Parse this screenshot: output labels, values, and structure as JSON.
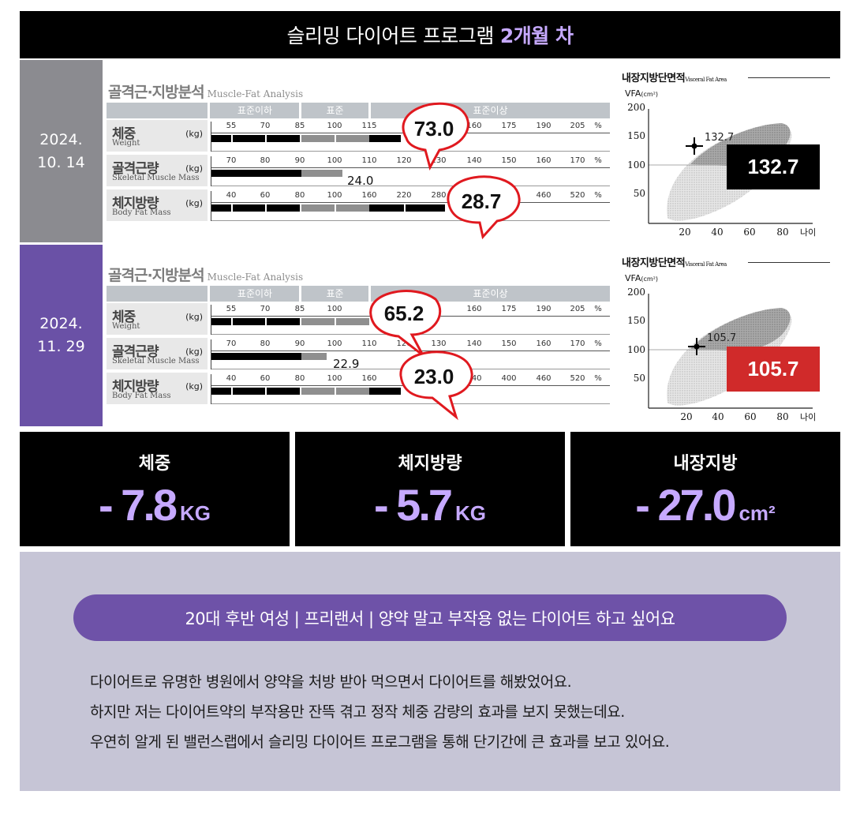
{
  "header": {
    "title": "슬리밍 다이어트 프로그램",
    "highlight": "2개월 차"
  },
  "sessions": [
    {
      "date_line1": "2024.",
      "date_line2": "10. 14",
      "mfa_title": "골격근·지방분석",
      "mfa_subtitle": "Muscle-Fat Analysis",
      "head_labels": [
        "표준이하",
        "표준",
        "표준이상"
      ],
      "rows": [
        {
          "ko": "체중",
          "en": "Weight",
          "unit": "(kg)",
          "ticks": [
            "55",
            "70",
            "85",
            "100",
            "115",
            "",
            "",
            "160",
            "175",
            "190",
            "205",
            "%"
          ]
        },
        {
          "ko": "골격근량",
          "en": "Skeletal Muscle Mass",
          "unit": "(kg)",
          "ticks": [
            "70",
            "80",
            "90",
            "100",
            "110",
            "120",
            "130",
            "140",
            "150",
            "160",
            "170",
            "%"
          ],
          "value": "24.0"
        },
        {
          "ko": "체지방량",
          "en": "Body Fat Mass",
          "unit": "(kg)",
          "ticks": [
            "40",
            "60",
            "80",
            "100",
            "160",
            "220",
            "280",
            "",
            "",
            "460",
            "520",
            "%"
          ]
        }
      ],
      "callouts": {
        "weight": "73.0",
        "fat": "28.7"
      },
      "vfa": {
        "title": "내장지방단면적",
        "title_en": "Visceral Fat Area",
        "axis_label": "VFA",
        "axis_unit": "(cm²)",
        "y_ticks": [
          "200",
          "150",
          "100",
          "50"
        ],
        "x_ticks": [
          "20",
          "40",
          "60",
          "80"
        ],
        "x_label": "나이",
        "point_label": "132.7",
        "box_value": "132.7",
        "box_color": "#000000"
      }
    },
    {
      "date_line1": "2024.",
      "date_line2": "11. 29",
      "mfa_title": "골격근·지방분석",
      "mfa_subtitle": "Muscle-Fat Analysis",
      "head_labels": [
        "표준이하",
        "표준",
        "표준이상"
      ],
      "rows": [
        {
          "ko": "체중",
          "en": "Weight",
          "unit": "(kg)",
          "ticks": [
            "55",
            "70",
            "85",
            "100",
            "",
            "",
            "",
            "160",
            "175",
            "190",
            "205",
            "%"
          ]
        },
        {
          "ko": "골격근량",
          "en": "Skeletal Muscle Mass",
          "unit": "(kg)",
          "ticks": [
            "70",
            "80",
            "90",
            "100",
            "110",
            "120",
            "130",
            "140",
            "150",
            "160",
            "170",
            "%"
          ],
          "value": "22.9"
        },
        {
          "ko": "체지방량",
          "en": "Body Fat Mass",
          "unit": "(kg)",
          "ticks": [
            "40",
            "60",
            "80",
            "100",
            "160",
            "",
            "",
            "340",
            "400",
            "460",
            "520",
            "%"
          ]
        }
      ],
      "callouts": {
        "weight": "65.2",
        "fat": "23.0"
      },
      "vfa": {
        "title": "내장지방단면적",
        "title_en": "Visceral Fat Area",
        "axis_label": "VFA",
        "axis_unit": "(cm²)",
        "y_ticks": [
          "200",
          "150",
          "100",
          "50"
        ],
        "x_ticks": [
          "20",
          "40",
          "60",
          "80"
        ],
        "x_label": "나이",
        "point_label": "105.7",
        "box_value": "105.7",
        "box_color": "#d02a2a"
      }
    }
  ],
  "stats": [
    {
      "label": "체중",
      "value": "- 7.8",
      "unit": "KG"
    },
    {
      "label": "체지방량",
      "value": "- 5.7",
      "unit": "KG"
    },
    {
      "label": "내장지방",
      "value": "- 27.0",
      "unit": "cm²"
    }
  ],
  "review": {
    "tagline": "20대 후반 여성 | 프리랜서 | 양약 말고 부작용 없는 다이어트 하고 싶어요",
    "lines": [
      "다이어트로 유명한 병원에서 양약을 처방 받아 먹으면서 다이어트를 해봤었어요.",
      "하지만 저는 다이어트약의 부작용만 잔뜩 겪고 정작 체중 감량의 효과를 보지 못했는데요.",
      "우연히 알게 된 밸런스랩에서 슬리밍 다이어트 프로그램을 통해 단기간에 큰 효과를 보고 있어요."
    ]
  },
  "colors": {
    "accent": "#c6a9ff",
    "purple": "#6a51a6",
    "gray": "#8b8b90",
    "red_box": "#d02a2a",
    "callout_red": "#e0191f"
  }
}
